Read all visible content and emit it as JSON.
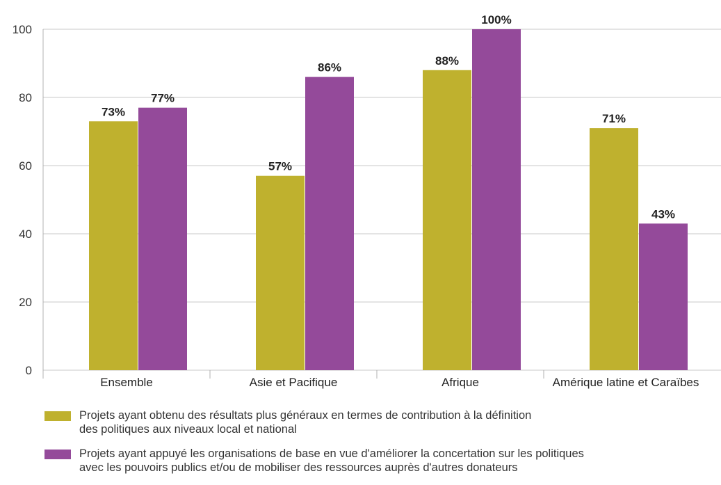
{
  "chart_data": {
    "type": "bar",
    "categories": [
      "Ensemble",
      "Asie et Pacifique",
      "Afrique",
      "Amérique latine et Caraïbes"
    ],
    "series": [
      {
        "name": "Projets ayant obtenu des résultats plus généraux en termes de contribution à la définition\ndes politiques aux niveaux local et national",
        "values": [
          73,
          57,
          88,
          71
        ],
        "labels": [
          "73%",
          "57%",
          "88%",
          "71%"
        ],
        "color": "#bfb12e"
      },
      {
        "name": "Projets ayant appuyé les organisations de base en vue d'améliorer la concertation sur les politiques\navec les pouvoirs publics et/ou de mobiliser des ressources auprès d'autres donateurs",
        "values": [
          77,
          86,
          100,
          43
        ],
        "labels": [
          "77%",
          "86%",
          "100%",
          "43%"
        ],
        "color": "#944a9a"
      }
    ],
    "ylim": [
      0,
      100
    ],
    "yticks": [
      "0",
      "20",
      "40",
      "60",
      "80",
      "100"
    ],
    "grid": true,
    "legend_position": "bottom"
  }
}
